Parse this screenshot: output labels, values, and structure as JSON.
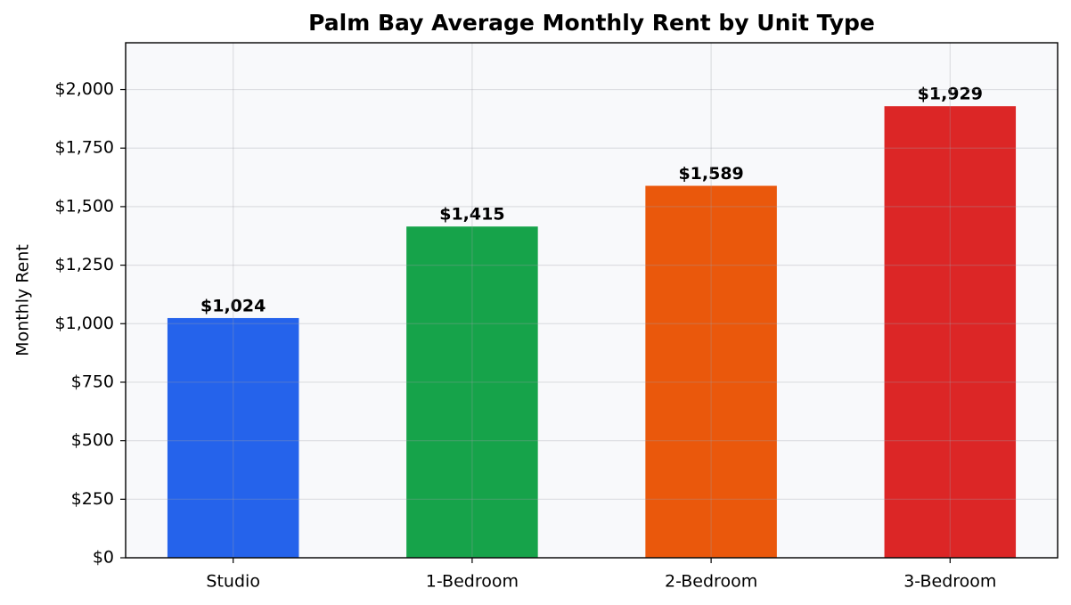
{
  "chart_data": {
    "type": "bar",
    "title": "Palm Bay Average Monthly Rent by Unit Type",
    "y_label": "Monthly Rent",
    "categories": [
      "Studio",
      "1-Bedroom",
      "2-Bedroom",
      "3-Bedroom"
    ],
    "values": [
      1024,
      1415,
      1589,
      1929
    ],
    "value_labels": [
      "$1,024",
      "$1,415",
      "$1,589",
      "$1,929"
    ],
    "colors": [
      "#2563eb",
      "#16a34a",
      "#ea580c",
      "#dc2626"
    ],
    "ylim": [
      0,
      2200
    ],
    "yticks": [
      {
        "value": 0,
        "label": "$0"
      },
      {
        "value": 250,
        "label": "$250"
      },
      {
        "value": 500,
        "label": "$500"
      },
      {
        "value": 750,
        "label": "$750"
      },
      {
        "value": 1000,
        "label": "$1,000"
      },
      {
        "value": 1250,
        "label": "$1,250"
      },
      {
        "value": 1500,
        "label": "$1,500"
      },
      {
        "value": 1750,
        "label": "$1,750"
      },
      {
        "value": 2000,
        "label": "$2,000"
      }
    ],
    "grid": true
  }
}
